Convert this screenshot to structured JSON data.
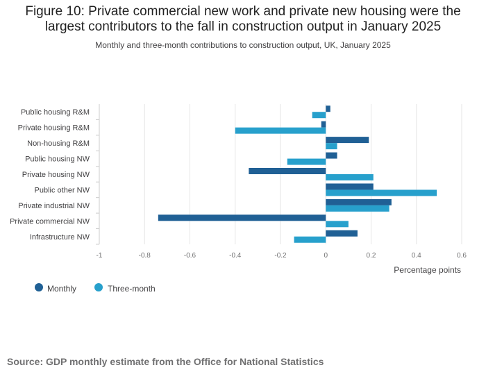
{
  "title_line1": "Figure 10: Private commercial new work and private new housing were the",
  "title_line2": "largest contributors to the fall in construction output in January 2025",
  "subtitle": "Monthly and three-month contributions to construction output, UK, January 2025",
  "source": "Source: GDP monthly estimate from the Office for National Statistics",
  "colors": {
    "monthly": "#206095",
    "three_month": "#27a0cc",
    "grid": "#e6e6e6",
    "axis": "#cccccc"
  },
  "chart_data": {
    "type": "bar",
    "orientation": "horizontal",
    "categories": [
      "Public housing R&M",
      "Private housing R&M",
      "Non-housing R&M",
      "Public housing NW",
      "Private housing NW",
      "Public other NW",
      "Private industrial NW",
      "Private commercial NW",
      "Infrastructure NW"
    ],
    "series": [
      {
        "name": "Monthly",
        "values": [
          0.02,
          -0.02,
          0.19,
          0.05,
          -0.34,
          0.21,
          0.29,
          -0.74,
          0.14
        ]
      },
      {
        "name": "Three-month",
        "values": [
          -0.06,
          -0.4,
          0.05,
          -0.17,
          0.21,
          0.49,
          0.28,
          0.1,
          -0.14
        ]
      }
    ],
    "xlim": [
      -1,
      0.6
    ],
    "xticks": [
      -1,
      -0.8,
      -0.6,
      -0.4,
      -0.2,
      0,
      0.2,
      0.4,
      0.6
    ],
    "xtick_labels": [
      "-1",
      "-0.8",
      "-0.6",
      "-0.4",
      "-0.2",
      "0",
      "0.2",
      "0.4",
      "0.6"
    ],
    "xlabel": "Percentage points",
    "legend_position": "bottom-left",
    "grid": true
  }
}
